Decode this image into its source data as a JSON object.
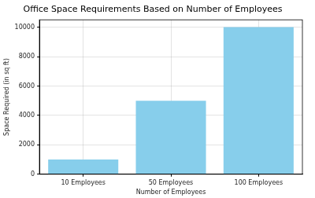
{
  "chart_data": {
    "type": "bar",
    "title": "Office Space Requirements Based on Number of Employees",
    "x_label": "Number of Employees",
    "y_label": "Space Required (in sq ft)",
    "categories": [
      "10 Employees",
      "50 Employees",
      "100 Employees"
    ],
    "values": [
      1000,
      5000,
      10000
    ],
    "color": "#87ceeb",
    "ylim": [
      0,
      10500
    ],
    "yticks": [
      0,
      2000,
      4000,
      6000,
      8000,
      10000
    ],
    "grid": true
  }
}
